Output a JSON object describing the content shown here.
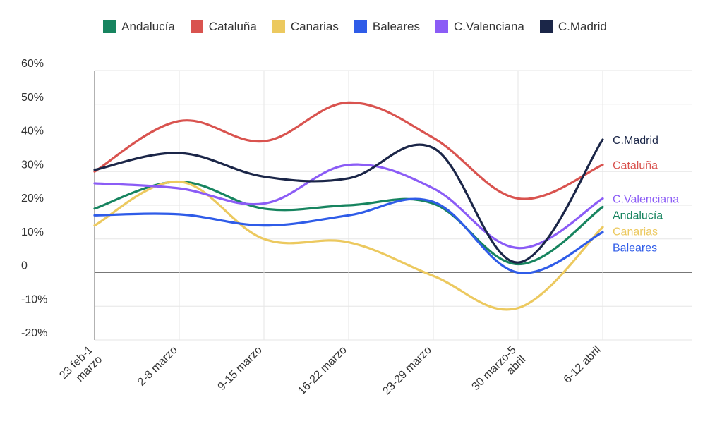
{
  "chart_data": {
    "type": "line",
    "title": "",
    "xlabel": "",
    "ylabel": "",
    "ylim": [
      -20,
      60
    ],
    "y_ticks": [
      {
        "value": -20,
        "label": "-20%"
      },
      {
        "value": -10,
        "label": "-10%"
      },
      {
        "value": 0,
        "label": "0"
      },
      {
        "value": 10,
        "label": "10%"
      },
      {
        "value": 20,
        "label": "20%"
      },
      {
        "value": 30,
        "label": "30%"
      },
      {
        "value": 40,
        "label": "40%"
      },
      {
        "value": 50,
        "label": "50%"
      },
      {
        "value": 60,
        "label": "60%"
      }
    ],
    "categories": [
      [
        "23 feb-1",
        "marzo"
      ],
      [
        "2-8 marzo"
      ],
      [
        "9-15 marzo"
      ],
      [
        "16-22 marzo"
      ],
      [
        "23-29 marzo"
      ],
      [
        "30 marzo-5",
        "abril"
      ],
      [
        "6-12 abril"
      ]
    ],
    "series": [
      {
        "name": "Andalucía",
        "color": "#17845f",
        "end_label": "Andalucía",
        "values": [
          19,
          27,
          19,
          20,
          20.5,
          2.5,
          19.5
        ]
      },
      {
        "name": "Cataluña",
        "color": "#d9534f",
        "end_label": "Cataluña",
        "values": [
          30,
          45,
          39,
          50.5,
          40,
          22,
          32
        ]
      },
      {
        "name": "Canarias",
        "color": "#ecc95f",
        "end_label": "Canarias",
        "values": [
          14,
          27,
          10,
          9,
          -1,
          -10.5,
          13.5
        ]
      },
      {
        "name": "Baleares",
        "color": "#2f5ce8",
        "end_label": "Baleares",
        "values": [
          17,
          17.3,
          14,
          17,
          21,
          0,
          12
        ]
      },
      {
        "name": "C.Valenciana",
        "color": "#8b5cf6",
        "end_label": "C.Valenciana",
        "values": [
          26.5,
          25,
          20.5,
          32,
          25,
          7.3,
          22
        ]
      },
      {
        "name": "C.Madrid",
        "color": "#1b2648",
        "end_label": "C.Madrid",
        "values": [
          30.5,
          35.5,
          28.5,
          28,
          37,
          3,
          39.5
        ]
      }
    ],
    "legend_position": "top-center",
    "grid": true
  }
}
